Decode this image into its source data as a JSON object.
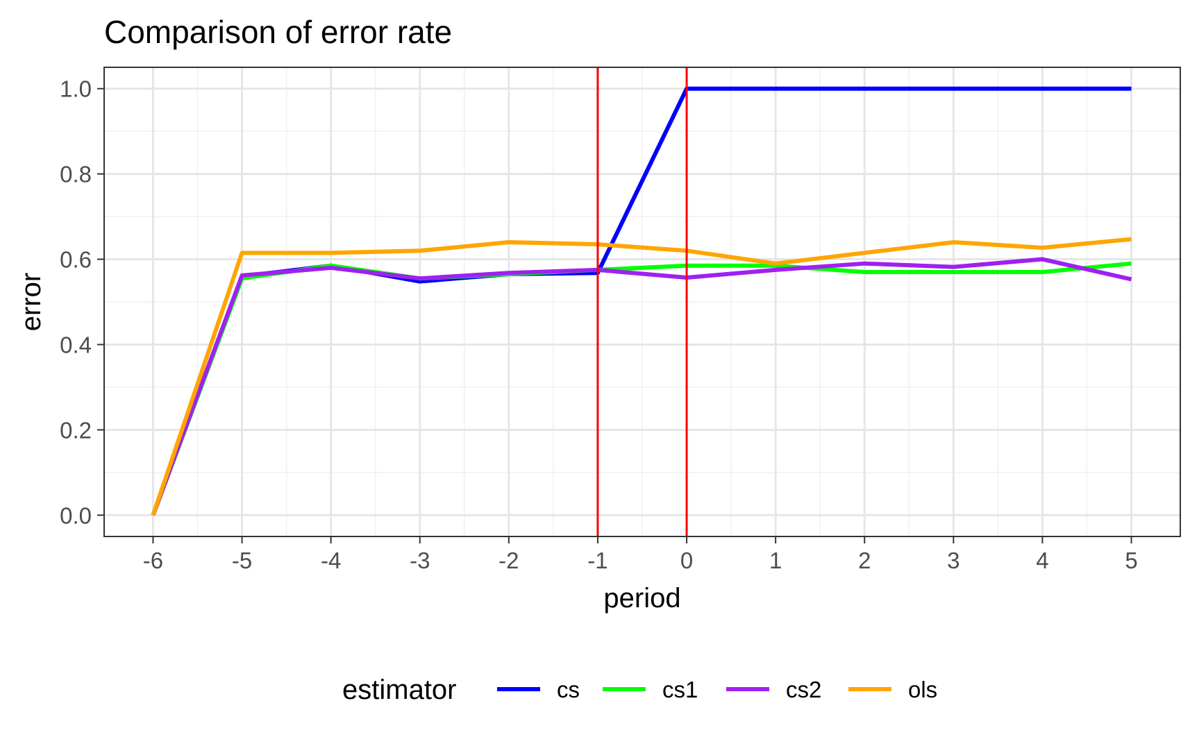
{
  "chart_data": {
    "type": "line",
    "title": "Comparison of error rate",
    "xlabel": "period",
    "ylabel": "error",
    "x": [
      -6,
      -5,
      -4,
      -3,
      -2,
      -1,
      0,
      1,
      2,
      3,
      4,
      5
    ],
    "xlim": [
      -6.55,
      5.55
    ],
    "ylim": [
      -0.05,
      1.05
    ],
    "xticks": [
      -6,
      -5,
      -4,
      -3,
      -2,
      -1,
      0,
      1,
      2,
      3,
      4,
      5
    ],
    "yticks": [
      0.0,
      0.2,
      0.4,
      0.6,
      0.8,
      1.0
    ],
    "ytick_labels": [
      "0.0",
      "0.2",
      "0.4",
      "0.6",
      "0.8",
      "1.0"
    ],
    "grid": true,
    "legend": {
      "title": "estimator",
      "position": "bottom"
    },
    "vlines": [
      {
        "x": -1,
        "color": "#ff0000"
      },
      {
        "x": 0,
        "color": "#ff0000"
      }
    ],
    "series": [
      {
        "name": "cs",
        "color": "#0000ff",
        "values": [
          0.0,
          0.56,
          0.585,
          0.548,
          0.565,
          0.568,
          1.0,
          1.0,
          1.0,
          1.0,
          1.0,
          1.0
        ]
      },
      {
        "name": "cs1",
        "color": "#00ff00",
        "values": [
          0.0,
          0.555,
          0.585,
          0.555,
          0.565,
          0.575,
          0.585,
          0.585,
          0.57,
          0.57,
          0.57,
          0.59
        ]
      },
      {
        "name": "cs2",
        "color": "#a020f0",
        "values": [
          0.0,
          0.562,
          0.58,
          0.555,
          0.568,
          0.575,
          0.557,
          0.575,
          0.59,
          0.582,
          0.6,
          0.553
        ]
      },
      {
        "name": "ols",
        "color": "#ffa500",
        "values": [
          0.0,
          0.615,
          0.615,
          0.62,
          0.64,
          0.635,
          0.62,
          0.59,
          0.615,
          0.64,
          0.627,
          0.647
        ]
      }
    ]
  }
}
